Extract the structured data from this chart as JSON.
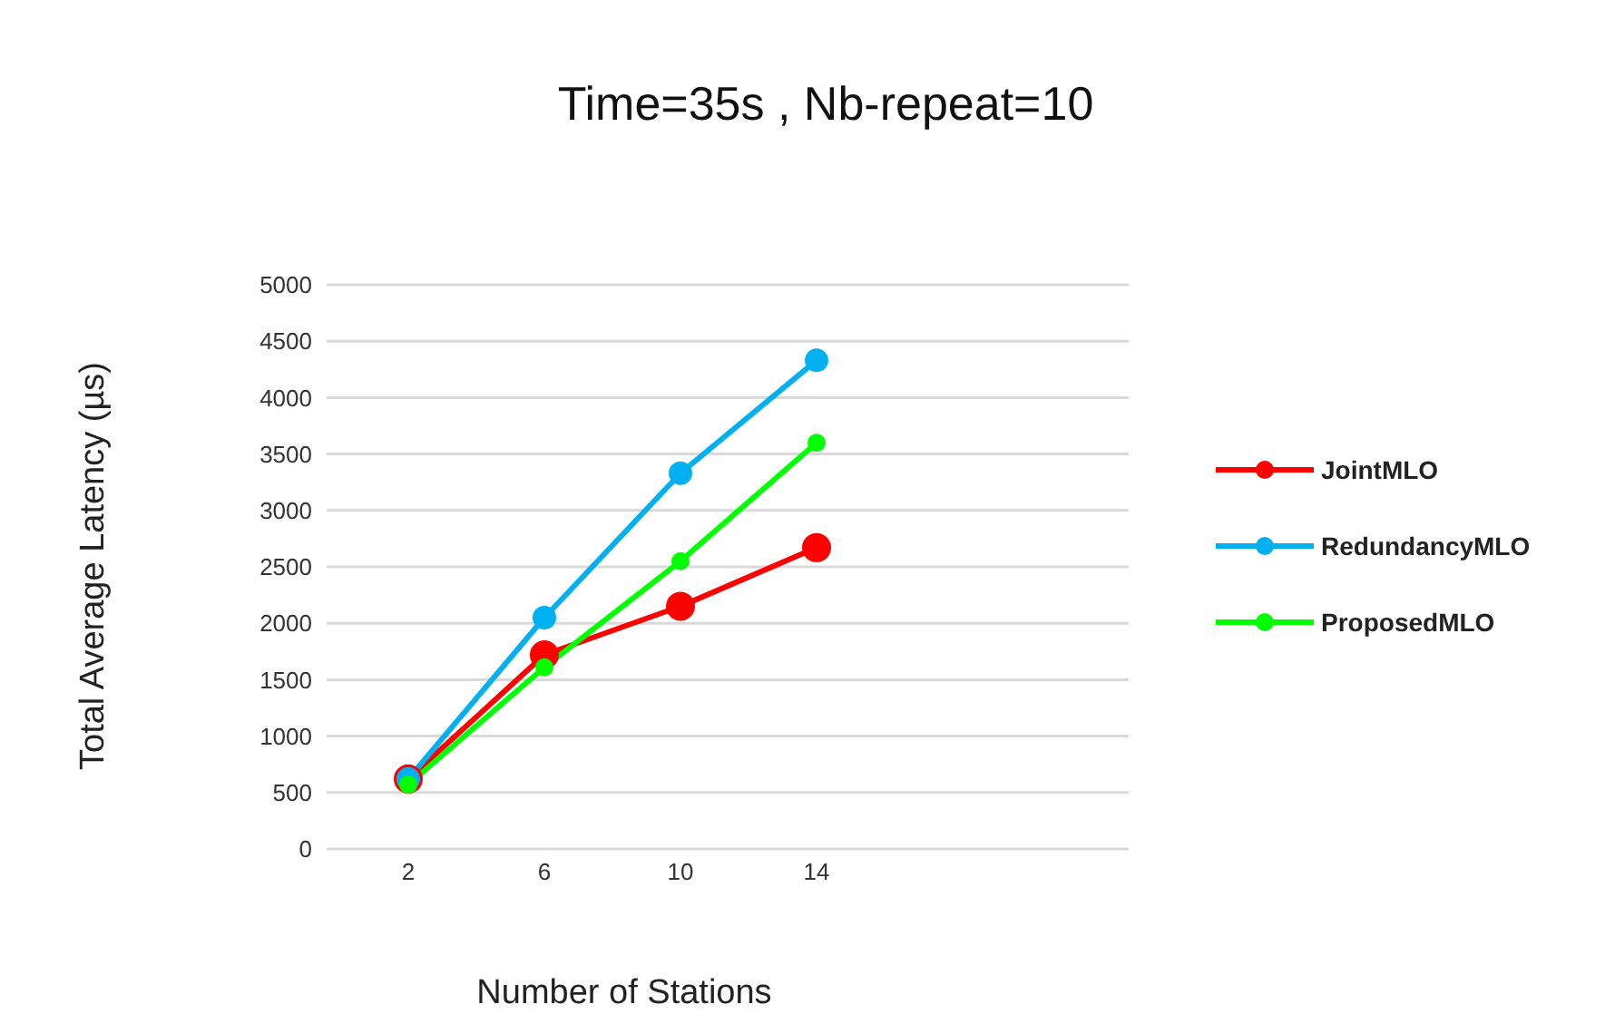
{
  "chart_data": {
    "type": "line",
    "title": "Time=35s , Nb-repeat=10",
    "xlabel": "Number of Stations",
    "ylabel": "Total Average Latency (µs)",
    "categories": [
      "2",
      "6",
      "10",
      "14",
      null,
      null
    ],
    "series": [
      {
        "name": "JointMLO",
        "color": "#ff0000",
        "values": [
          620,
          1720,
          2150,
          2670,
          null,
          null
        ]
      },
      {
        "name": "RedundancyMLO",
        "color": "#00b0f0",
        "values": [
          620,
          2050,
          3330,
          4330,
          null,
          null
        ]
      },
      {
        "name": "ProposedMLO",
        "color": "#00ff00",
        "values": [
          570,
          1610,
          2550,
          3600,
          null,
          null
        ]
      }
    ],
    "ylim": [
      0,
      5000
    ],
    "yticks": [
      0,
      500,
      1000,
      1500,
      2000,
      2500,
      3000,
      3500,
      4000,
      4500,
      5000
    ],
    "grid": "y",
    "legend": "right",
    "marker": "circle",
    "line_style": "solid"
  }
}
